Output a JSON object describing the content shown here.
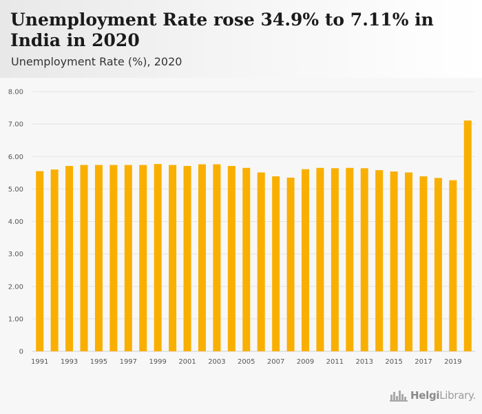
{
  "header": {
    "title": "Unemployment Rate rose 34.9% to 7.11% in India in 2020",
    "subtitle": "Unemployment Rate (%), 2020"
  },
  "brand": {
    "name_bold": "Helgi",
    "name_rest": "Library."
  },
  "colors": {
    "bar": "#F9AF00",
    "grid": "#e3e3e3",
    "axis_text": "#555555"
  },
  "chart_data": {
    "type": "bar",
    "title": "Unemployment Rate rose 34.9% to 7.11% in India in 2020",
    "subtitle": "Unemployment Rate (%), 2020",
    "xlabel": "",
    "ylabel": "",
    "ylim": [
      0,
      8
    ],
    "grid": true,
    "categories": [
      "1991",
      "1992",
      "1993",
      "1994",
      "1995",
      "1996",
      "1997",
      "1998",
      "1999",
      "2000",
      "2001",
      "2002",
      "2003",
      "2004",
      "2005",
      "2006",
      "2007",
      "2008",
      "2009",
      "2010",
      "2011",
      "2012",
      "2013",
      "2014",
      "2015",
      "2016",
      "2017",
      "2018",
      "2019",
      "2020"
    ],
    "values": [
      5.55,
      5.6,
      5.71,
      5.74,
      5.74,
      5.74,
      5.74,
      5.74,
      5.77,
      5.74,
      5.71,
      5.76,
      5.76,
      5.71,
      5.65,
      5.51,
      5.39,
      5.35,
      5.61,
      5.65,
      5.64,
      5.65,
      5.64,
      5.58,
      5.54,
      5.51,
      5.39,
      5.34,
      5.27,
      7.11
    ],
    "y_ticks": [
      "0",
      "1.00",
      "2.00",
      "3.00",
      "4.00",
      "5.00",
      "6.00",
      "7.00",
      "8.00"
    ],
    "y_tick_values": [
      0,
      1,
      2,
      3,
      4,
      5,
      6,
      7,
      8
    ],
    "x_tick_labels": [
      "1991",
      "1993",
      "1995",
      "1997",
      "1999",
      "2001",
      "2003",
      "2005",
      "2007",
      "2009",
      "2011",
      "2013",
      "2015",
      "2017",
      "2019"
    ]
  }
}
